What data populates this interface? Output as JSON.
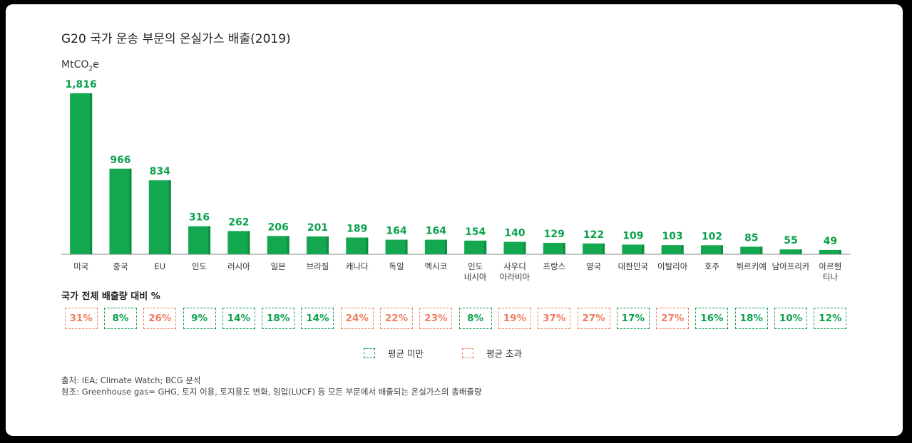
{
  "title": "G20 국가 운송 부문의 온실가스 배출(2019)",
  "unit_base": "MtCO",
  "unit_sub": "2",
  "unit_tail": "e",
  "chart_data": {
    "type": "bar",
    "categories": [
      "미국",
      "중국",
      "EU",
      "인도",
      "러시아",
      "일본",
      "브라질",
      "캐나다",
      "독일",
      "멕시코",
      "인도\n네시아",
      "사우디\n아라비아",
      "프랑스",
      "영국",
      "대한민국",
      "이탈리아",
      "호주",
      "튀르키예",
      "남아프리카",
      "아르헨\n티나"
    ],
    "values": [
      1816,
      966,
      834,
      316,
      262,
      206,
      201,
      189,
      164,
      164,
      154,
      140,
      129,
      122,
      109,
      103,
      102,
      85,
      55,
      49
    ],
    "value_labels": [
      "1,816",
      "966",
      "834",
      "316",
      "262",
      "206",
      "201",
      "189",
      "164",
      "164",
      "154",
      "140",
      "129",
      "122",
      "109",
      "103",
      "102",
      "85",
      "55",
      "49"
    ],
    "ylim": [
      0,
      1816
    ],
    "bar_color": "#13a84f",
    "bar_shade": "#0b8f3f"
  },
  "share_title": "국가 전체 배출량 대비 %",
  "shares": [
    {
      "label": "31%",
      "status": "above"
    },
    {
      "label": "8%",
      "status": "below"
    },
    {
      "label": "26%",
      "status": "above"
    },
    {
      "label": "9%",
      "status": "below"
    },
    {
      "label": "14%",
      "status": "below"
    },
    {
      "label": "18%",
      "status": "below"
    },
    {
      "label": "14%",
      "status": "below"
    },
    {
      "label": "24%",
      "status": "above"
    },
    {
      "label": "22%",
      "status": "above"
    },
    {
      "label": "23%",
      "status": "above"
    },
    {
      "label": "8%",
      "status": "below"
    },
    {
      "label": "19%",
      "status": "above"
    },
    {
      "label": "37%",
      "status": "above"
    },
    {
      "label": "27%",
      "status": "above"
    },
    {
      "label": "17%",
      "status": "below"
    },
    {
      "label": "27%",
      "status": "above"
    },
    {
      "label": "16%",
      "status": "below"
    },
    {
      "label": "18%",
      "status": "below"
    },
    {
      "label": "10%",
      "status": "below"
    },
    {
      "label": "12%",
      "status": "below"
    }
  ],
  "legend": {
    "below_label": "평균 미만",
    "above_label": "평균 초과",
    "below_color": "#0aa14b",
    "above_color": "#f07c5d"
  },
  "notes": {
    "source": "출처: IEA; Climate Watch; BCG 분석",
    "reference": "참조: Greenhouse gas= GHG, 토지 이용, 토지용도 변화, 임업(LUCF) 등 모든 부문에서 배출되는 온실가스의 총배출량"
  }
}
